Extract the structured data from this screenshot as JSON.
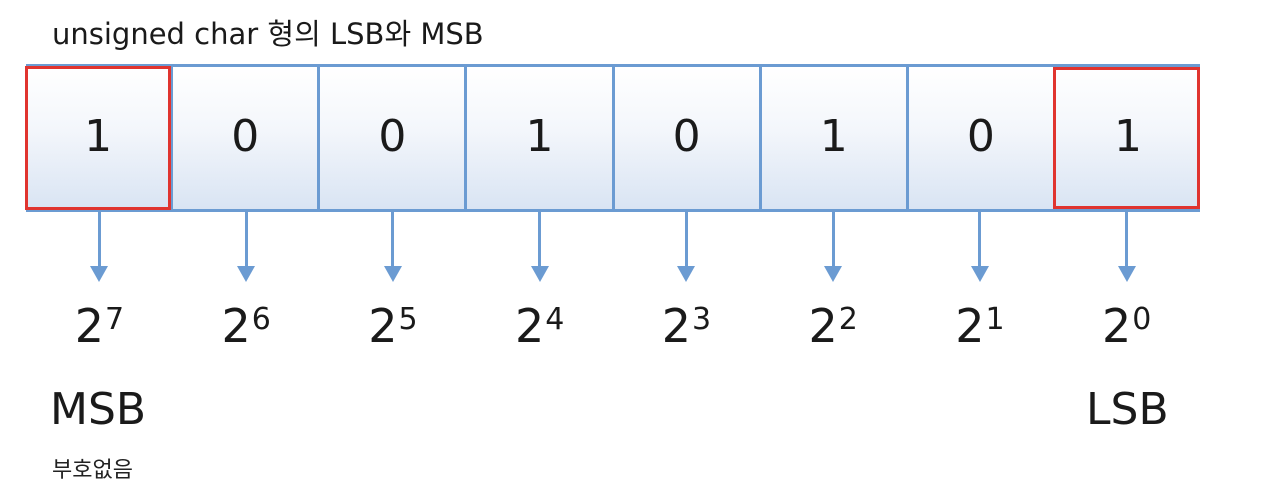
{
  "title": "unsigned char 형의 LSB와 MSB",
  "bits": [
    {
      "value": "1",
      "highlight": true
    },
    {
      "value": "0",
      "highlight": false
    },
    {
      "value": "0",
      "highlight": false
    },
    {
      "value": "1",
      "highlight": false
    },
    {
      "value": "0",
      "highlight": false
    },
    {
      "value": "1",
      "highlight": false
    },
    {
      "value": "0",
      "highlight": false
    },
    {
      "value": "1",
      "highlight": true
    }
  ],
  "powers": [
    {
      "base": "2",
      "exp": "7"
    },
    {
      "base": "2",
      "exp": "6"
    },
    {
      "base": "2",
      "exp": "5"
    },
    {
      "base": "2",
      "exp": "4"
    },
    {
      "base": "2",
      "exp": "3"
    },
    {
      "base": "2",
      "exp": "2"
    },
    {
      "base": "2",
      "exp": "1"
    },
    {
      "base": "2",
      "exp": "0"
    }
  ],
  "msb_label": "MSB",
  "lsb_label": "LSB",
  "note": "부호없음",
  "colors": {
    "cell_border": "#6b9bd2",
    "highlight_border": "#e0342f",
    "arrow": "#6b9bd2"
  }
}
